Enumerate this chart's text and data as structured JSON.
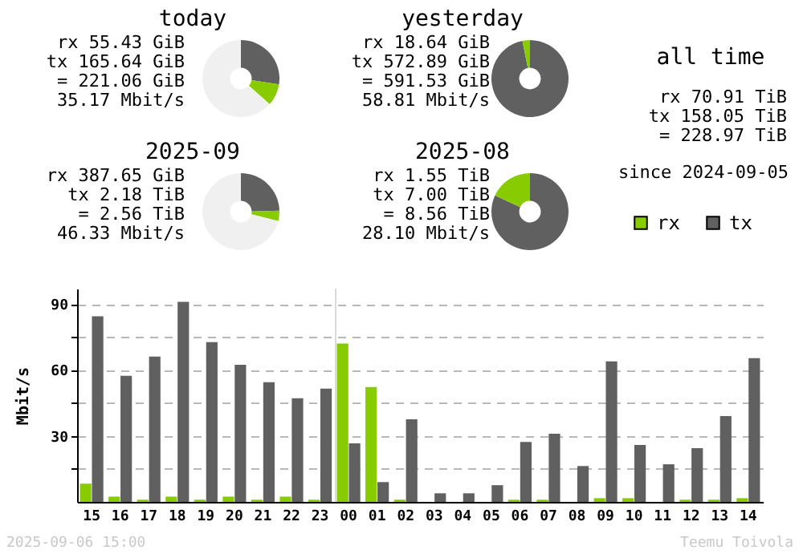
{
  "chart_data": [
    {
      "type": "donut",
      "title": "today",
      "categories": [
        null,
        null,
        null
      ],
      "values": [
        27.4,
        9.2,
        63.4
      ],
      "colors": [
        "#606060",
        "#88cc00",
        "#f0f0f0"
      ],
      "annotations": [
        "rx 55.43 GiB",
        "tx 165.64 GiB",
        "= 221.06 GiB",
        "35.17 Mbit/s"
      ]
    },
    {
      "type": "donut",
      "title": "yesterday",
      "categories": [
        null,
        null
      ],
      "values": [
        96.85,
        3.15
      ],
      "colors": [
        "#606060",
        "#88cc00"
      ],
      "annotations": [
        "rx 18.64 GiB",
        "tx 572.89 GiB",
        "= 591.53 GiB",
        "58.81 Mbit/s"
      ]
    },
    {
      "type": "other",
      "title": "all time",
      "annotations": [
        "rx 70.91 TiB",
        "tx 158.05 TiB",
        "= 228.97 TiB",
        "since 2024-09-05"
      ]
    },
    {
      "type": "donut",
      "title": "2025-09",
      "categories": [
        null,
        null,
        null
      ],
      "values": [
        24.6,
        4.3,
        71.1
      ],
      "colors": [
        "#606060",
        "#88cc00",
        "#f0f0f0"
      ],
      "annotations": [
        "rx 387.65 GiB",
        "tx 2.18 TiB",
        "= 2.56 TiB",
        "46.33 Mbit/s"
      ]
    },
    {
      "type": "donut",
      "title": "2025-08",
      "categories": [
        null,
        null
      ],
      "values": [
        81.9,
        18.1
      ],
      "colors": [
        "#606060",
        "#88cc00"
      ],
      "annotations": [
        "rx 1.55 TiB",
        "tx 7.00 TiB",
        "= 8.56 TiB",
        "28.10 Mbit/s"
      ]
    },
    {
      "type": "bar",
      "ylabel": "Mbit/s",
      "categories": [
        "15",
        "16",
        "17",
        "18",
        "19",
        "20",
        "21",
        "22",
        "23",
        "00",
        "01",
        "02",
        "03",
        "04",
        "05",
        "06",
        "07",
        "08",
        "09",
        "10",
        "11",
        "12",
        "13",
        "14"
      ],
      "series": [
        {
          "name": "rx",
          "color": "#88cc00",
          "values": [
            8.3,
            2.4,
            1,
            2.4,
            1,
            2.4,
            1,
            2.4,
            1,
            72,
            52.2,
            1,
            0,
            0,
            0,
            1,
            1,
            0,
            1.7,
            1.7,
            0,
            1,
            1,
            1.7
          ]
        },
        {
          "name": "tx",
          "color": "#606060",
          "values": [
            84.4,
            57.3,
            66.1,
            91,
            72.7,
            62.4,
            54.4,
            47.1,
            51.5,
            26.6,
            9,
            37.6,
            3.9,
            3.9,
            7.6,
            27.3,
            31,
            16.3,
            63.9,
            25.9,
            17.1,
            24.4,
            39,
            65.4
          ]
        }
      ],
      "ylim": [
        0,
        97
      ],
      "yticks": [
        {
          "value": 15,
          "label": null
        },
        30,
        {
          "value": 45,
          "label": null
        },
        60,
        {
          "value": 75,
          "label": null
        },
        90
      ],
      "grid": "y",
      "legend": "top right",
      "ref_lines": [
        {
          "axis": "x",
          "value": "00",
          "color": "#d8d8d8"
        }
      ],
      "annotations": [
        "2025-09-06 15:00",
        "Teemu Toivola"
      ]
    }
  ]
}
